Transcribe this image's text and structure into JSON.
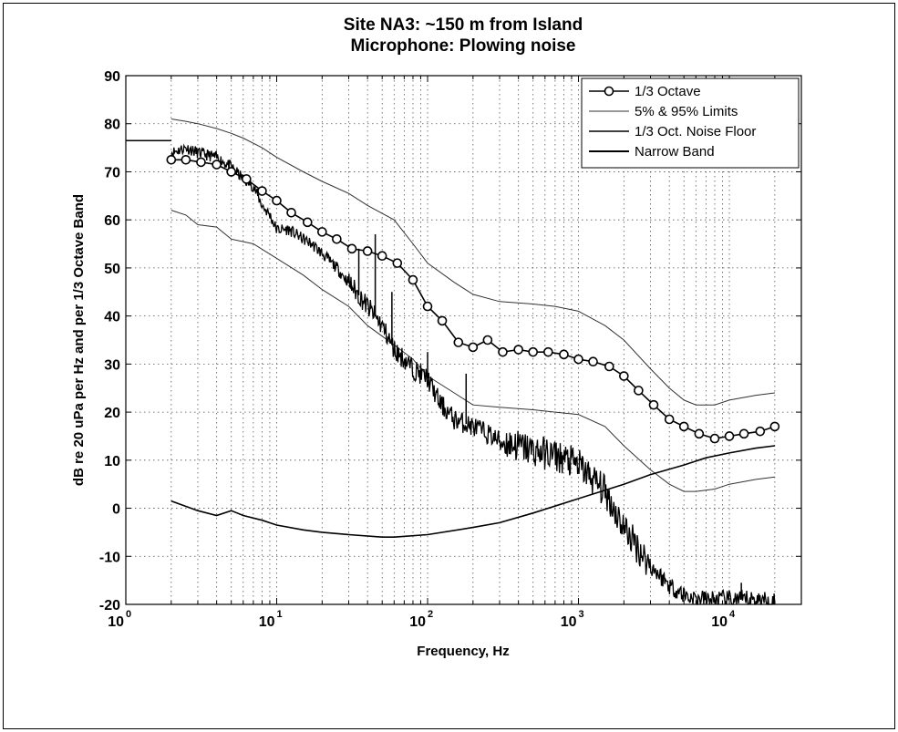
{
  "chart_data": {
    "type": "line",
    "title": "Site NA3: ~150 m from Island",
    "subtitle": "Microphone: Plowing noise",
    "xlabel": "Frequency, Hz",
    "ylabel": "dB re 20 uPa per Hz and per 1/3 Octave Band",
    "x_scale": "log",
    "xlim": [
      1,
      30000
    ],
    "ylim": [
      -20,
      90
    ],
    "x_ticks": [
      {
        "value": 1,
        "base": "10",
        "exp": "0"
      },
      {
        "value": 10,
        "base": "10",
        "exp": "1"
      },
      {
        "value": 100,
        "base": "10",
        "exp": "2"
      },
      {
        "value": 1000,
        "base": "10",
        "exp": "3"
      },
      {
        "value": 10000,
        "base": "10",
        "exp": "4"
      }
    ],
    "y_ticks": [
      -20,
      -10,
      0,
      10,
      20,
      30,
      40,
      50,
      60,
      70,
      80,
      90
    ],
    "grid": "dotted, major and minor",
    "legend_position": "top-right",
    "series": [
      {
        "name": "1/3 Octave",
        "style": "line-circle-markers",
        "color": "#000000",
        "x": [
          2,
          2.5,
          3.15,
          4,
          5,
          6.3,
          8,
          10,
          12.5,
          16,
          20,
          25,
          31.5,
          40,
          50,
          63,
          80,
          100,
          125,
          160,
          200,
          250,
          315,
          400,
          500,
          630,
          800,
          1000,
          1250,
          1600,
          2000,
          2500,
          3150,
          4000,
          5000,
          6300,
          8000,
          10000,
          12500,
          16000,
          20000
        ],
        "y": [
          72.5,
          72.5,
          72,
          71.5,
          70,
          68.5,
          66,
          64,
          61.5,
          59.5,
          57.5,
          56,
          54,
          53.5,
          52.5,
          51,
          47.5,
          42,
          39,
          34.5,
          33.5,
          35,
          32.5,
          33,
          32.5,
          32.5,
          32,
          31,
          30.5,
          29.5,
          27.5,
          24.5,
          21.5,
          18.5,
          17,
          15.5,
          14.5,
          15,
          15.5,
          16,
          17
        ]
      },
      {
        "name": "5% & 95% Limits",
        "style": "thin-line",
        "color": "#333333",
        "upper": {
          "x": [
            2,
            2.5,
            3,
            4,
            5,
            6,
            8,
            10,
            15,
            20,
            30,
            40,
            60,
            80,
            100,
            150,
            200,
            300,
            500,
            700,
            1000,
            1500,
            2000,
            3000,
            4000,
            5000,
            6000,
            8000,
            10000,
            15000,
            20000
          ],
          "y": [
            81,
            80.5,
            80,
            79,
            78,
            77,
            75,
            73,
            70,
            68,
            65.5,
            63,
            60,
            55,
            51,
            47,
            44.5,
            43,
            42.5,
            42,
            41,
            38,
            35,
            29,
            25,
            22.5,
            21.5,
            21.5,
            22.5,
            23.5,
            24
          ]
        },
        "lower": {
          "x": [
            2,
            2.5,
            3,
            4,
            5,
            7,
            10,
            15,
            20,
            30,
            40,
            60,
            80,
            100,
            150,
            200,
            300,
            500,
            700,
            1000,
            1500,
            2000,
            3000,
            4000,
            5000,
            6000,
            8000,
            10000,
            15000,
            20000
          ],
          "y": [
            62,
            61,
            59,
            58.5,
            56,
            55,
            52,
            48.5,
            45.5,
            42,
            38,
            34,
            31,
            27.5,
            24,
            21.5,
            21,
            20.5,
            20,
            19.5,
            17,
            13,
            8,
            5,
            3.5,
            3.5,
            4,
            5,
            6,
            6.5
          ]
        }
      },
      {
        "name": "1/3 Oct. Noise Floor",
        "style": "line",
        "color": "#000000",
        "x": [
          2,
          3,
          4,
          5,
          6,
          8,
          10,
          15,
          20,
          30,
          50,
          60,
          100,
          200,
          300,
          500,
          1000,
          2000,
          3000,
          5000,
          7000,
          10000,
          15000,
          20000
        ],
        "y": [
          1.5,
          -0.5,
          -1.5,
          -0.5,
          -1.5,
          -2.5,
          -3.5,
          -4.5,
          -5,
          -5.5,
          -6,
          -6,
          -5.5,
          -4,
          -3,
          -1,
          2,
          5,
          7,
          9,
          10.5,
          11.5,
          12.5,
          13
        ]
      },
      {
        "name": "Narrow Band",
        "style": "thick-noisy-line",
        "color": "#000000",
        "x": [
          2,
          2.5,
          3,
          4,
          5,
          6,
          7,
          8,
          9,
          10,
          12,
          15,
          17,
          20,
          25,
          30,
          40,
          50,
          60,
          70,
          80,
          100,
          120,
          150,
          200,
          250,
          300,
          400,
          500,
          700,
          1000,
          1500,
          2000,
          3000,
          4000,
          5000,
          6000,
          8000,
          10000,
          15000,
          20000
        ],
        "y": [
          74,
          75,
          74,
          73,
          71,
          68.5,
          67,
          63,
          61,
          58,
          58,
          56,
          55,
          53,
          50,
          47,
          42,
          38,
          33,
          31,
          29,
          27,
          22,
          18.5,
          17,
          15.5,
          14,
          13,
          12,
          11,
          9,
          3.5,
          -4,
          -12,
          -16,
          -18,
          -19,
          -19,
          -19,
          -19,
          -19.5
        ]
      }
    ],
    "leading_segment": {
      "x": [
        1,
        2
      ],
      "y": [
        76.5,
        76.5
      ]
    },
    "narrowband_spikes": [
      {
        "x": 35,
        "y": 54
      },
      {
        "x": 45,
        "y": 57
      },
      {
        "x": 58,
        "y": 45
      },
      {
        "x": 100,
        "y": 32.5
      },
      {
        "x": 180,
        "y": 28
      },
      {
        "x": 12000,
        "y": -15.5
      }
    ]
  }
}
